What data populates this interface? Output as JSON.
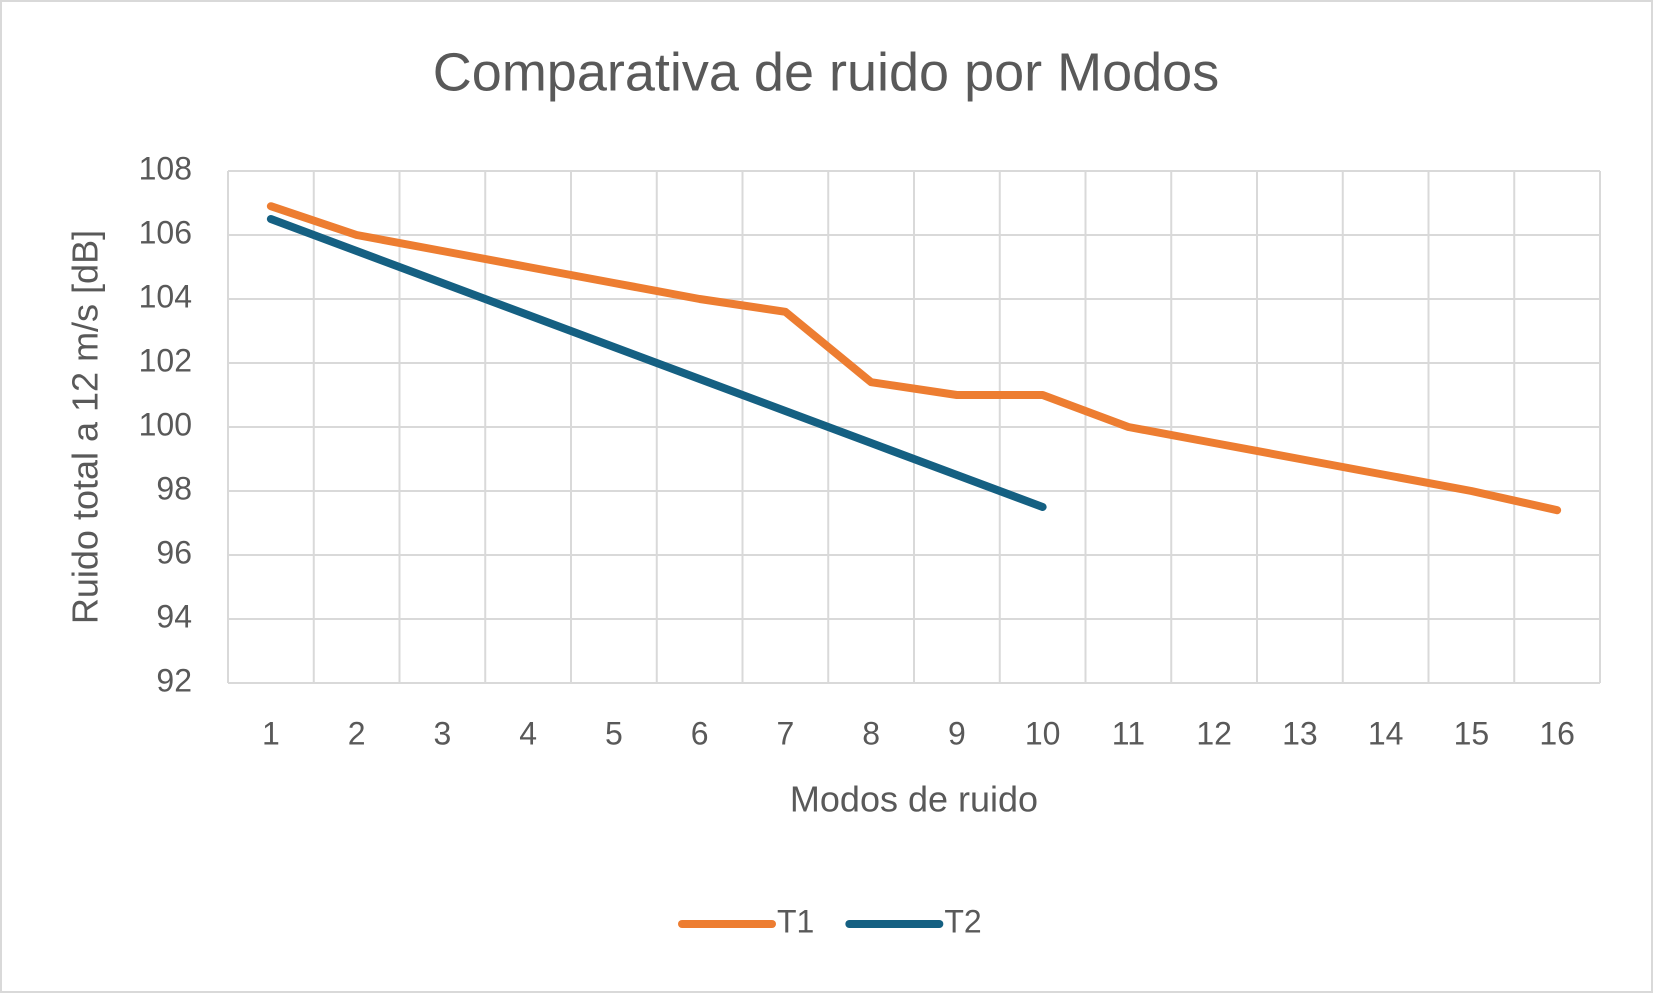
{
  "chart_data": {
    "type": "line",
    "title": "Comparativa de ruido por Modos",
    "xlabel": "Modos de ruido",
    "ylabel": "Ruido total a 12 m/s [dB]",
    "categories": [
      1,
      2,
      3,
      4,
      5,
      6,
      7,
      8,
      9,
      10,
      11,
      12,
      13,
      14,
      15,
      16
    ],
    "series": [
      {
        "name": "T1",
        "color": "#ed7d31",
        "values": [
          106.9,
          106.0,
          105.5,
          105.0,
          104.5,
          104.0,
          103.6,
          101.4,
          101.0,
          101.0,
          100.0,
          99.5,
          99.0,
          98.5,
          98.0,
          97.4
        ]
      },
      {
        "name": "T2",
        "color": "#156082",
        "values": [
          106.5,
          105.5,
          104.5,
          103.5,
          102.5,
          101.5,
          100.5,
          99.5,
          98.5,
          97.5,
          null,
          null,
          null,
          null,
          null,
          null
        ]
      }
    ],
    "ylim": [
      92,
      108
    ],
    "yticks": [
      92,
      94,
      96,
      98,
      100,
      102,
      104,
      106,
      108
    ],
    "grid": true,
    "legend": "bottom"
  }
}
